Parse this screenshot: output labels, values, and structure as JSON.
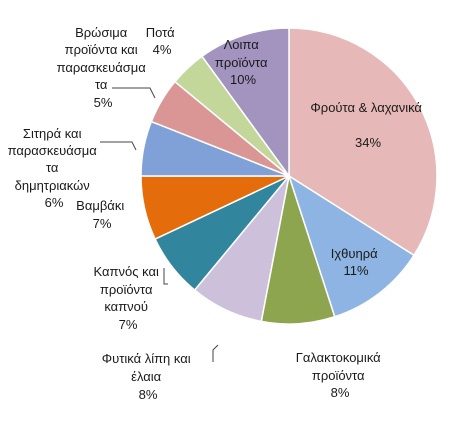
{
  "chart_data": {
    "type": "pie",
    "title": "",
    "start_angle_deg": 0,
    "direction": "clockwise",
    "slices": [
      {
        "label": "Φρούτα & λαχανικά",
        "percent_label": "34%",
        "value": 34,
        "color": "#e6b9b8"
      },
      {
        "label": "Ιχθυηρά",
        "percent_label": "11%",
        "value": 11,
        "color": "#8db4e2"
      },
      {
        "label": "Γαλακτοκομικά προϊόντα",
        "percent_label": "8%",
        "value": 8,
        "color": "#8da54f"
      },
      {
        "label": "Φυτικά λίπη και έλαια",
        "percent_label": "8%",
        "value": 8,
        "color": "#ccc0da"
      },
      {
        "label": "Καπνός και προϊόντα καπνού",
        "percent_label": "7%",
        "value": 7,
        "color": "#31859c"
      },
      {
        "label": "Βαμβάκι",
        "percent_label": "7%",
        "value": 7,
        "color": "#e46c0a"
      },
      {
        "label": "Σιτηρά και παρασκευάσματα δημητριακών",
        "percent_label": "6%",
        "value": 6,
        "color": "#7fa1d8"
      },
      {
        "label": "Βρώσιμα προϊόντα και παρασκευάσματα",
        "percent_label": "5%",
        "value": 5,
        "color": "#d99694"
      },
      {
        "label": "Ποτά",
        "percent_label": "4%",
        "value": 4,
        "color": "#c4d79b"
      },
      {
        "label": "Λοιπα προϊόντα",
        "percent_label": "10%",
        "value": 10,
        "color": "#a294bf"
      }
    ]
  }
}
